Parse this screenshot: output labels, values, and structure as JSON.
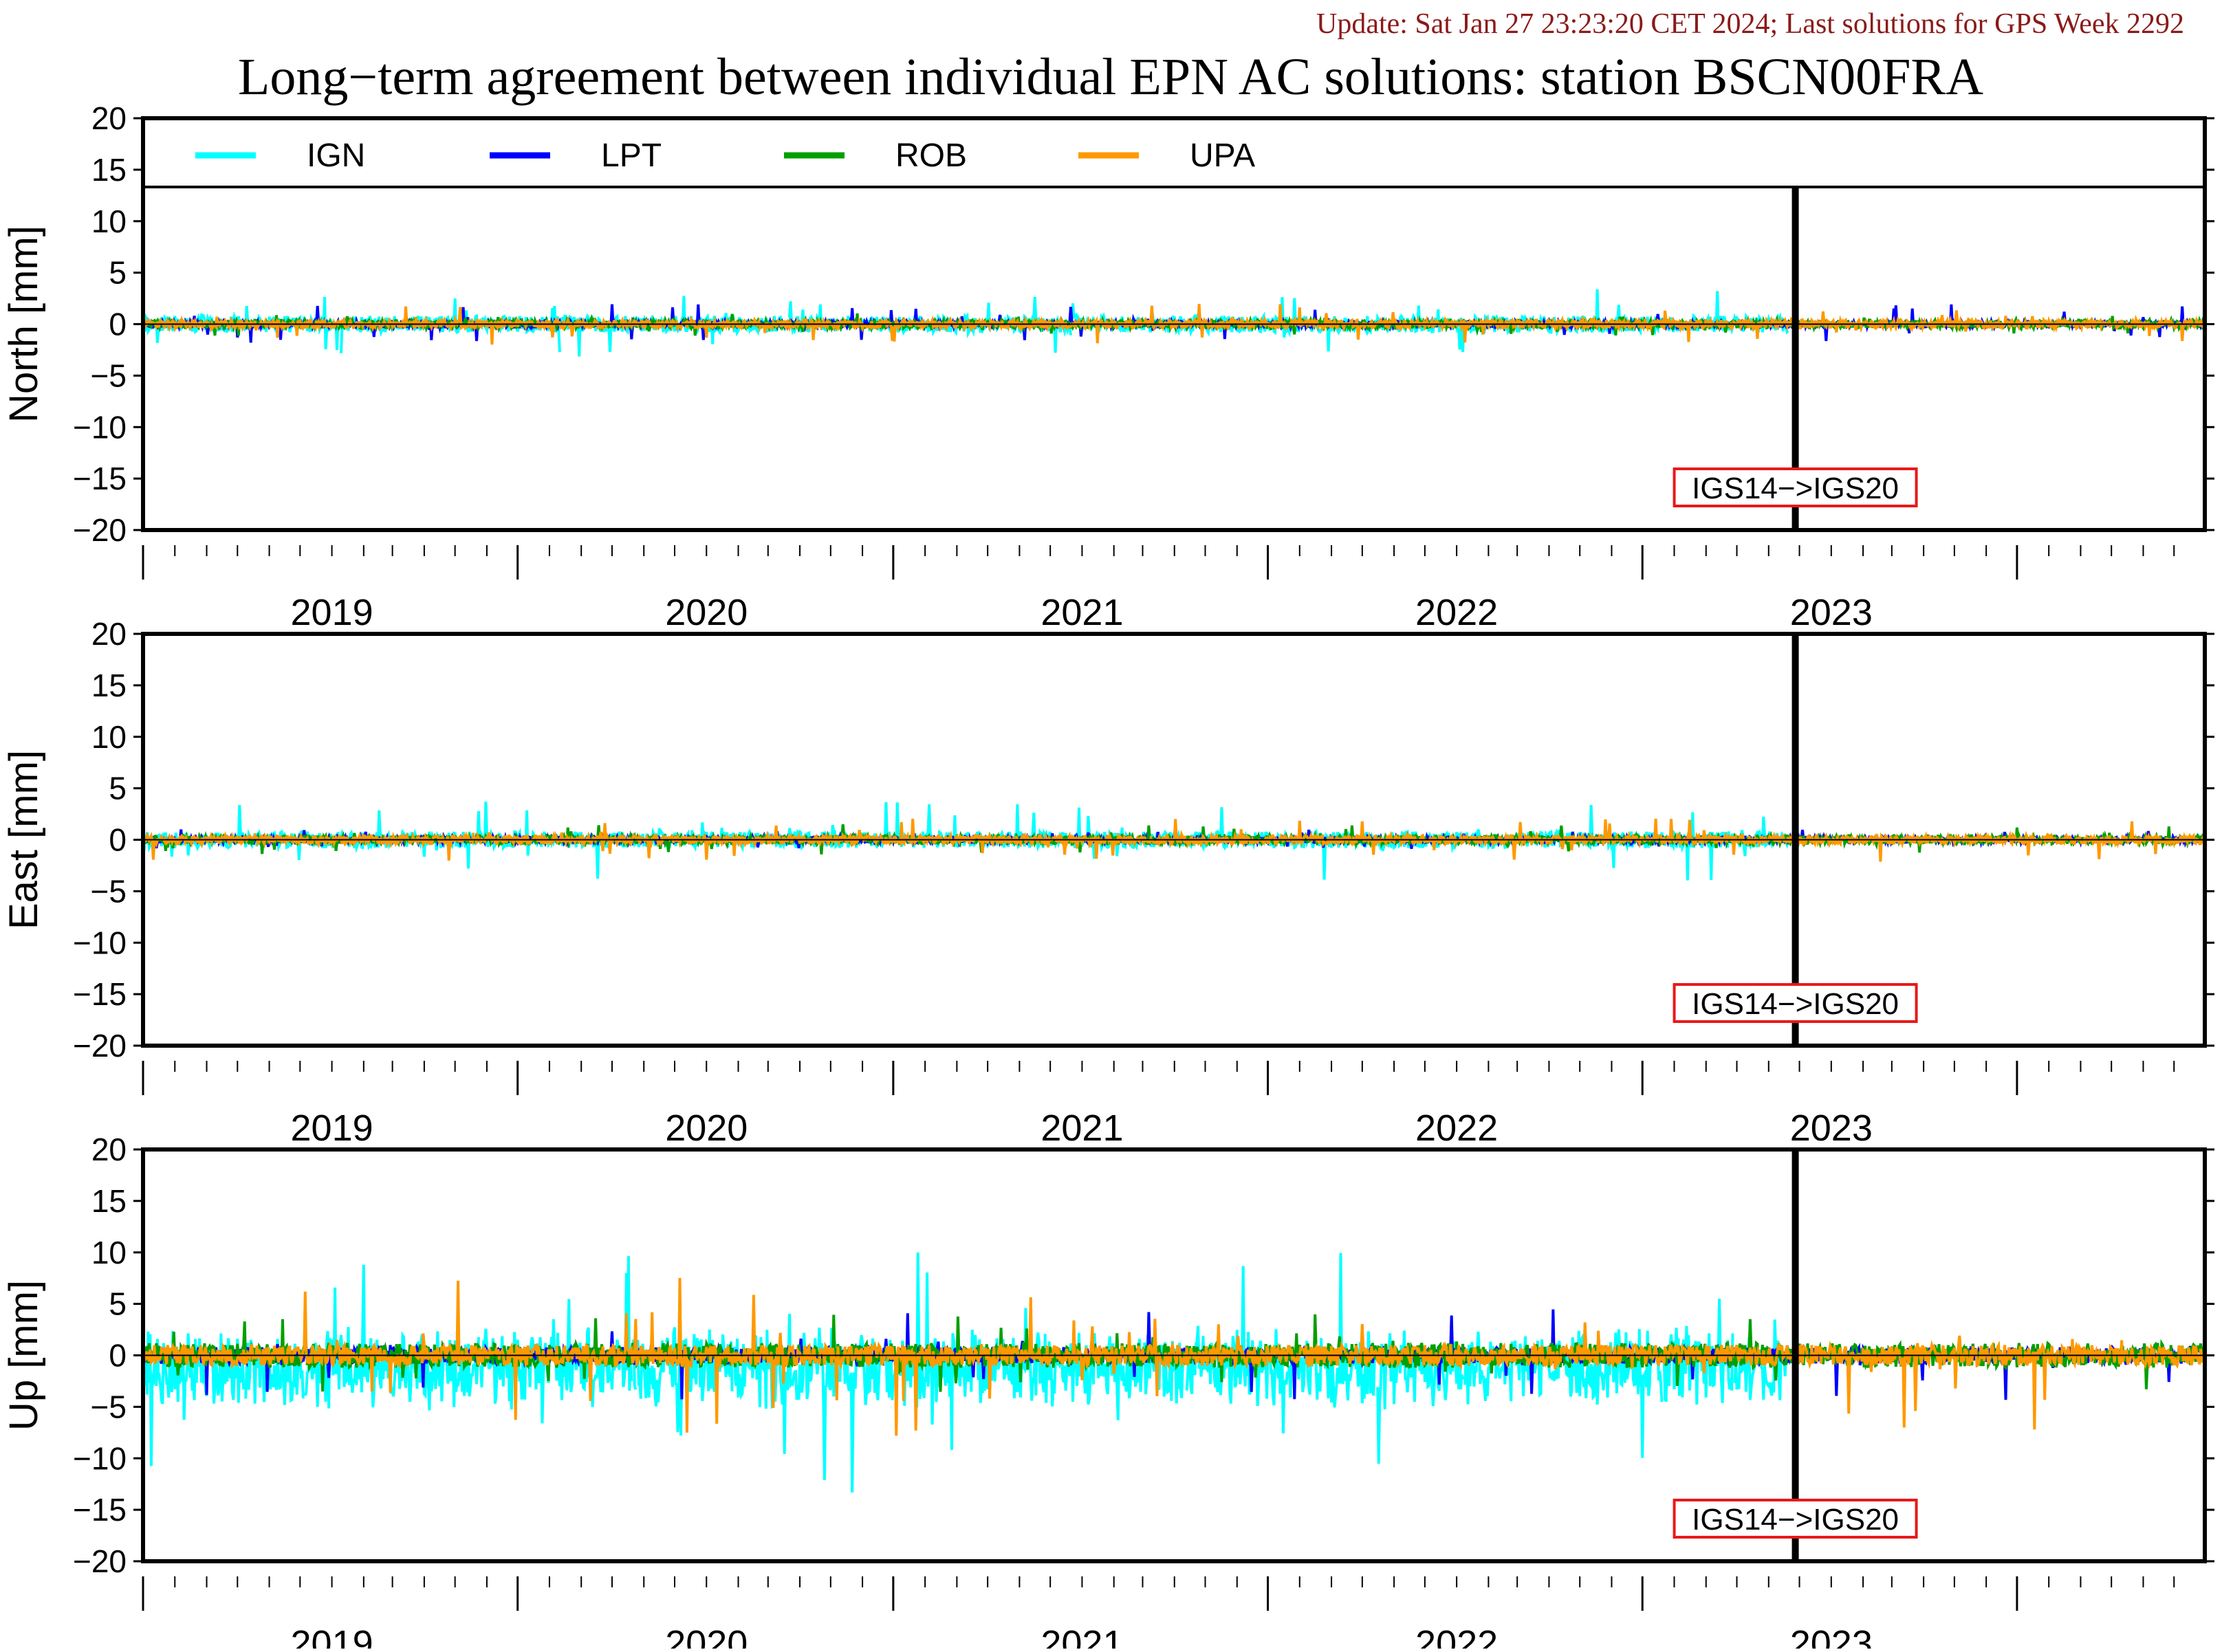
{
  "update_text": "Update: Sat Jan 27 23:23:20 CET 2024; Last solutions for GPS Week 2292",
  "colors": {
    "update_text": "#8b1a1a",
    "frame": "#000000",
    "marker_box": "#e8191a"
  },
  "chart_data": {
    "type": "line",
    "title": "Long−term agreement between individual EPN AC solutions: station BSCN00FRA",
    "legend": {
      "placement": "top",
      "entries": [
        {
          "name": "IGN",
          "color": "#00ffff"
        },
        {
          "name": "LPT",
          "color": "#0000ff"
        },
        {
          "name": "ROB",
          "color": "#00a000"
        },
        {
          "name": "UPA",
          "color": "#ff9900"
        }
      ]
    },
    "x_range": [
      "2018-07-01",
      "2023-12-31"
    ],
    "year_ticks": [
      "2019-01-01",
      "2020-01-01",
      "2021-01-01",
      "2022-01-01",
      "2023-01-01"
    ],
    "year_labels": [
      "2019",
      "2020",
      "2021",
      "2022",
      "2023"
    ],
    "year_ticks_major": [
      "2018-07-01",
      "2019-07-01",
      "2020-07-01",
      "2021-07-01",
      "2022-07-01",
      "2023-07-01"
    ],
    "frame_change": {
      "date": "2022-11-27",
      "label": "IGS14−>IGS20"
    },
    "y_ticks": [
      20,
      15,
      10,
      5,
      0,
      -5,
      -10,
      -15,
      -20
    ],
    "ylim": [
      -20,
      20
    ],
    "panels": [
      {
        "ylabel": "North [mm]",
        "series": [
          {
            "name": "IGN",
            "start": "2018-07-01",
            "end": "2022-11-20",
            "typical_abs_mm": 0.8,
            "max_abs_mm": 3.5
          },
          {
            "name": "LPT",
            "start": "2018-07-01",
            "end": "2023-12-31",
            "typical_abs_mm": 0.3,
            "max_abs_mm": 2.0
          },
          {
            "name": "ROB",
            "start": "2018-07-01",
            "end": "2023-12-31",
            "typical_abs_mm": 0.4,
            "max_abs_mm": 1.2
          },
          {
            "name": "UPA",
            "start": "2018-07-01",
            "end": "2023-12-31",
            "typical_abs_mm": 0.4,
            "max_abs_mm": 2.0
          }
        ]
      },
      {
        "ylabel": "East [mm]",
        "series": [
          {
            "name": "IGN",
            "start": "2018-07-01",
            "end": "2022-11-20",
            "typical_abs_mm": 0.8,
            "max_abs_mm": 4.0
          },
          {
            "name": "LPT",
            "start": "2018-07-01",
            "end": "2023-12-31",
            "typical_abs_mm": 0.3,
            "max_abs_mm": 1.0
          },
          {
            "name": "ROB",
            "start": "2018-07-01",
            "end": "2023-12-31",
            "typical_abs_mm": 0.4,
            "max_abs_mm": 1.5
          },
          {
            "name": "UPA",
            "start": "2018-07-01",
            "end": "2023-12-31",
            "typical_abs_mm": 0.4,
            "max_abs_mm": 2.2
          }
        ]
      },
      {
        "ylabel": "Up [mm]",
        "series": [
          {
            "name": "IGN",
            "start": "2018-07-01",
            "end": "2022-11-20",
            "typical_abs_mm": 3.0,
            "max_abs_mm": 11.0
          },
          {
            "name": "LPT",
            "start": "2018-07-01",
            "end": "2023-12-31",
            "typical_abs_mm": 0.8,
            "max_abs_mm": 4.5
          },
          {
            "name": "ROB",
            "start": "2018-07-01",
            "end": "2023-12-31",
            "typical_abs_mm": 1.2,
            "max_abs_mm": 4.0
          },
          {
            "name": "UPA",
            "start": "2018-07-01",
            "end": "2023-12-31",
            "typical_abs_mm": 1.0,
            "max_abs_mm": 8.0
          }
        ]
      }
    ],
    "grid": false
  }
}
